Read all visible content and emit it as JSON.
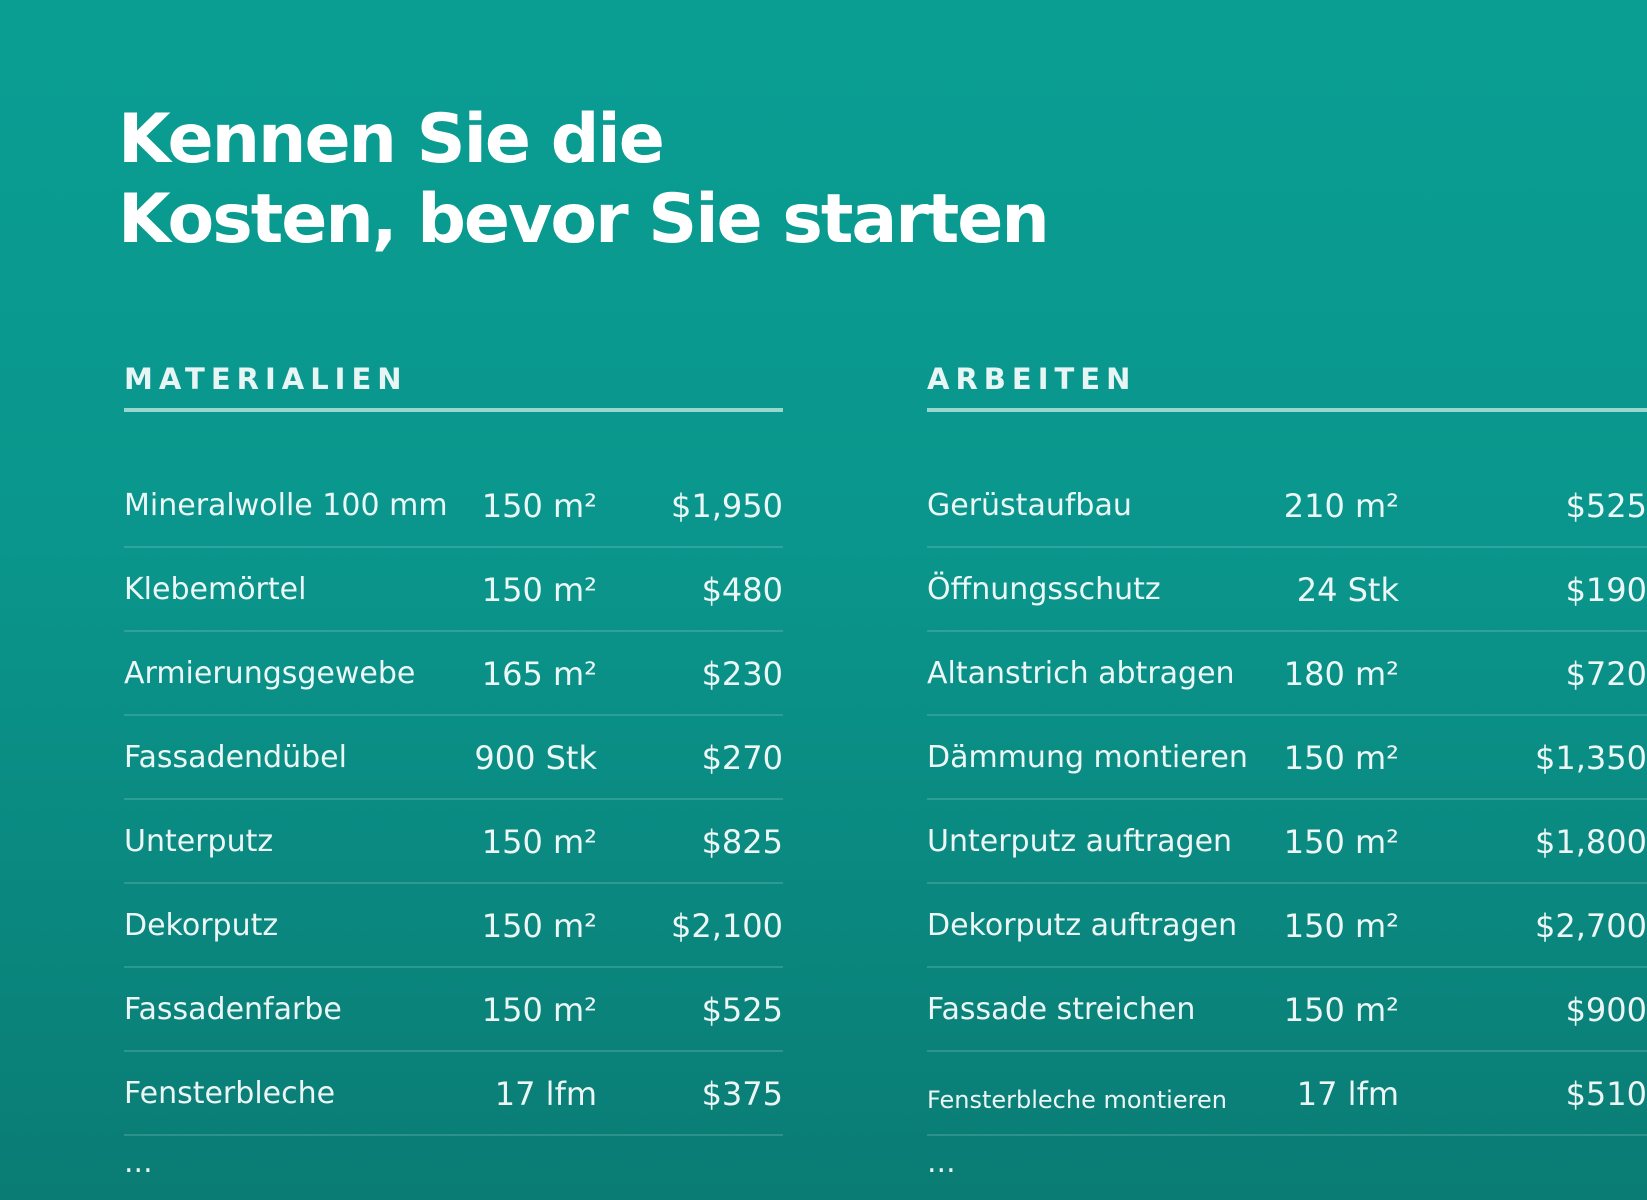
{
  "title": {
    "line1": "Kennen Sie die",
    "line2": "Kosten, bevor Sie starten"
  },
  "materials": {
    "heading": "MATERIALIEN",
    "rows": [
      {
        "name": "Mineralwolle 100 mm",
        "qty": "150 m²",
        "cost": "$1,950"
      },
      {
        "name": "Klebemörtel",
        "qty": "150 m²",
        "cost": "$480"
      },
      {
        "name": "Armierungsgewebe",
        "qty": "165 m²",
        "cost": "$230"
      },
      {
        "name": "Fassadendübel",
        "qty": "900 Stk",
        "cost": "$270"
      },
      {
        "name": "Unterputz",
        "qty": "150 m²",
        "cost": "$825"
      },
      {
        "name": "Dekorputz",
        "qty": "150 m²",
        "cost": "$2,100"
      },
      {
        "name": "Fassadenfarbe",
        "qty": "150 m²",
        "cost": "$525"
      },
      {
        "name": "Fensterbleche",
        "qty": "17 lfm",
        "cost": "$375"
      }
    ],
    "more": "..."
  },
  "labor": {
    "heading": "ARBEITEN",
    "rows": [
      {
        "name": "Gerüstaufbau",
        "qty": "210 m²",
        "cost": "$525"
      },
      {
        "name": "Öffnungsschutz",
        "qty": "24 Stk",
        "cost": "$190"
      },
      {
        "name": "Altanstrich abtragen",
        "qty": "180 m²",
        "cost": "$720"
      },
      {
        "name": "Dämmung montieren",
        "qty": "150 m²",
        "cost": "$1,350"
      },
      {
        "name": "Unterputz auftragen",
        "qty": "150 m²",
        "cost": "$1,800"
      },
      {
        "name": "Dekorputz auftragen",
        "qty": "150 m²",
        "cost": "$2,700"
      },
      {
        "name": "Fassade streichen",
        "qty": "150 m²",
        "cost": "$900"
      },
      {
        "name": "Fensterbleche montieren",
        "qty": "17 lfm",
        "cost": "$510"
      }
    ],
    "more": "..."
  }
}
